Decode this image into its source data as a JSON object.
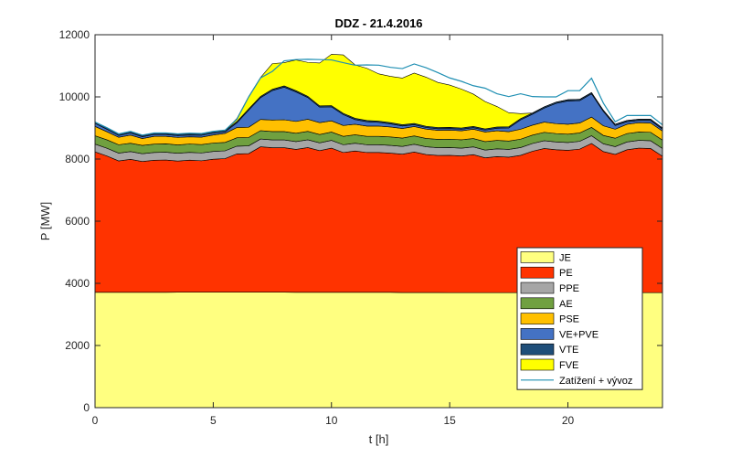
{
  "chart_data": {
    "type": "area",
    "title": "DDZ - 21.4.2016",
    "xlabel": "t [h]",
    "ylabel": "P [MW]",
    "xlim": [
      0,
      24
    ],
    "ylim": [
      0,
      12000
    ],
    "xticks": [
      0,
      5,
      10,
      15,
      20
    ],
    "yticks": [
      0,
      2000,
      4000,
      6000,
      8000,
      10000,
      12000
    ],
    "grid": false,
    "legend_position": "bottom-right",
    "x": [
      0,
      0.5,
      1,
      1.5,
      2,
      2.5,
      3,
      3.5,
      4,
      4.5,
      5,
      5.5,
      6,
      6.5,
      7,
      7.5,
      8,
      8.5,
      9,
      9.5,
      10,
      10.5,
      11,
      11.5,
      12,
      12.5,
      13,
      13.5,
      14,
      14.5,
      15,
      15.5,
      16,
      16.5,
      17,
      17.5,
      18,
      18.5,
      19,
      19.5,
      20,
      20.5,
      21,
      21.5,
      22,
      22.5,
      23,
      23.5,
      24
    ],
    "series": [
      {
        "name": "JE",
        "color": "#ffff80",
        "values": [
          3710,
          3710,
          3710,
          3710,
          3710,
          3710,
          3710,
          3715,
          3715,
          3715,
          3715,
          3715,
          3715,
          3715,
          3715,
          3715,
          3715,
          3710,
          3710,
          3710,
          3710,
          3710,
          3710,
          3710,
          3710,
          3710,
          3705,
          3705,
          3705,
          3705,
          3700,
          3700,
          3700,
          3700,
          3700,
          3700,
          3700,
          3700,
          3700,
          3700,
          3700,
          3700,
          3700,
          3700,
          3700,
          3700,
          3700,
          3700,
          3700
        ]
      },
      {
        "name": "PE",
        "color": "#ff3300",
        "values": [
          4520,
          4390,
          4230,
          4280,
          4210,
          4250,
          4260,
          4220,
          4250,
          4230,
          4280,
          4300,
          4450,
          4460,
          4680,
          4650,
          4650,
          4600,
          4660,
          4560,
          4640,
          4500,
          4550,
          4500,
          4500,
          4480,
          4450,
          4520,
          4440,
          4410,
          4420,
          4400,
          4440,
          4340,
          4380,
          4360,
          4420,
          4550,
          4640,
          4600,
          4580,
          4620,
          4800,
          4540,
          4450,
          4600,
          4650,
          4640,
          4390
        ]
      },
      {
        "name": "PPE",
        "color": "#a6a6a6",
        "values": [
          250,
          250,
          250,
          250,
          250,
          250,
          250,
          250,
          250,
          250,
          250,
          250,
          250,
          250,
          250,
          250,
          250,
          250,
          250,
          250,
          250,
          250,
          250,
          250,
          250,
          250,
          250,
          250,
          250,
          250,
          250,
          250,
          250,
          250,
          250,
          250,
          250,
          250,
          250,
          250,
          250,
          250,
          250,
          250,
          250,
          250,
          250,
          250,
          250
        ]
      },
      {
        "name": "AE",
        "color": "#70a040",
        "values": [
          270,
          270,
          270,
          270,
          270,
          270,
          270,
          270,
          270,
          270,
          270,
          270,
          270,
          270,
          270,
          270,
          270,
          270,
          270,
          270,
          270,
          270,
          270,
          270,
          270,
          270,
          270,
          270,
          270,
          270,
          270,
          270,
          270,
          270,
          270,
          270,
          270,
          270,
          270,
          270,
          270,
          270,
          270,
          270,
          270,
          270,
          270,
          270,
          270
        ]
      },
      {
        "name": "PSE",
        "color": "#ffc000",
        "values": [
          300,
          260,
          240,
          260,
          220,
          250,
          240,
          240,
          230,
          240,
          260,
          290,
          330,
          330,
          360,
          370,
          380,
          380,
          390,
          380,
          360,
          350,
          340,
          330,
          330,
          320,
          310,
          300,
          300,
          290,
          290,
          290,
          300,
          310,
          310,
          300,
          320,
          320,
          330,
          320,
          320,
          320,
          330,
          310,
          290,
          300,
          300,
          300,
          290
        ]
      },
      {
        "name": "VE+PVE",
        "color": "#4472c4",
        "values": [
          100,
          80,
          60,
          70,
          60,
          60,
          60,
          60,
          60,
          60,
          60,
          50,
          150,
          550,
          700,
          950,
          1050,
          950,
          700,
          500,
          450,
          350,
          150,
          140,
          120,
          100,
          80,
          60,
          50,
          50,
          50,
          50,
          50,
          60,
          80,
          120,
          300,
          350,
          450,
          650,
          750,
          720,
          750,
          460,
          120,
          80,
          70,
          80,
          60
        ]
      },
      {
        "name": "VTE",
        "color": "#1f4e79",
        "values": [
          40,
          40,
          40,
          40,
          40,
          40,
          40,
          40,
          40,
          40,
          40,
          40,
          40,
          40,
          40,
          40,
          40,
          40,
          40,
          40,
          40,
          40,
          40,
          40,
          40,
          40,
          40,
          40,
          40,
          40,
          40,
          40,
          40,
          40,
          40,
          40,
          40,
          40,
          40,
          40,
          40,
          40,
          40,
          40,
          40,
          40,
          40,
          40,
          40
        ]
      },
      {
        "name": "FVE",
        "color": "#ffff00",
        "values": [
          0,
          0,
          0,
          0,
          0,
          0,
          0,
          0,
          0,
          0,
          0,
          0,
          100,
          400,
          610,
          825,
          745,
          990,
          1090,
          1380,
          1650,
          1880,
          1720,
          1680,
          1520,
          1490,
          1500,
          1620,
          1580,
          1450,
          1360,
          1250,
          1040,
          880,
          660,
          450,
          160,
          0,
          0,
          0,
          0,
          0,
          0,
          0,
          0,
          0,
          0,
          0,
          0
        ]
      },
      {
        "name": "Zatížení + vývoz",
        "type": "line",
        "color": "#1f8fb3",
        "values": [
          9190,
          9010,
          8810,
          8890,
          8770,
          8840,
          8840,
          8810,
          8830,
          8820,
          8890,
          8930,
          9280,
          10000,
          10610,
          10820,
          11160,
          11200,
          11210,
          11200,
          11190,
          11100,
          11020,
          11030,
          11020,
          10950,
          10910,
          11060,
          10940,
          10780,
          10610,
          10500,
          10360,
          10280,
          10100,
          10010,
          10100,
          10010,
          10000,
          10000,
          10200,
          10200,
          10600,
          9800,
          9200,
          9400,
          9400,
          9400,
          9100
        ]
      }
    ]
  }
}
